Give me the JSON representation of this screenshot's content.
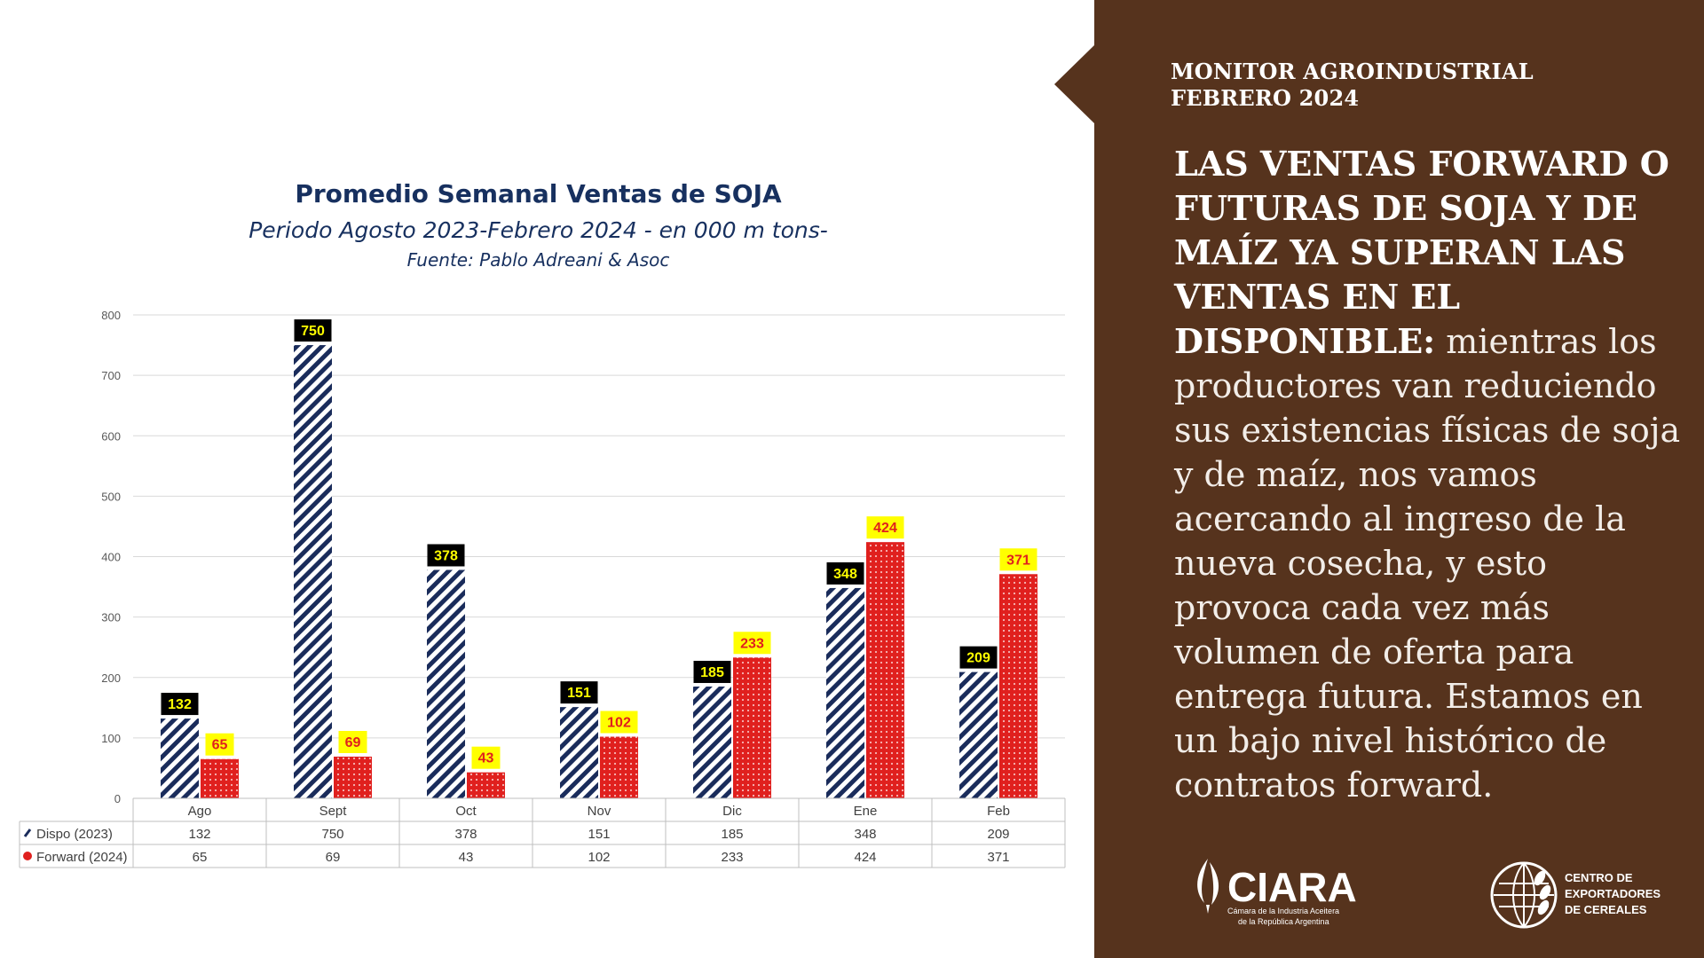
{
  "chart_data": {
    "type": "bar",
    "title": "Promedio Semanal Ventas de SOJA",
    "subtitle": "Periodo Agosto 2023-Febrero 2024 - en 000 m tons-",
    "source": "Fuente: Pablo Adreani & Asoc",
    "categories": [
      "Ago",
      "Sept",
      "Oct",
      "Nov",
      "Dic",
      "Ene",
      "Feb"
    ],
    "series": [
      {
        "name": "Dispo (2023)",
        "values": [
          132,
          750,
          378,
          151,
          185,
          348,
          209
        ],
        "color": "#1a2c5b"
      },
      {
        "name": "Forward (2024)",
        "values": [
          65,
          69,
          43,
          102,
          233,
          424,
          371
        ],
        "color": "#e0201e"
      }
    ],
    "ylim": [
      0,
      800
    ],
    "yticks": [
      0,
      100,
      200,
      300,
      400,
      500,
      600,
      700,
      800
    ],
    "grid": true,
    "legend": "data-table"
  },
  "panel": {
    "kicker": [
      "MONITOR AGROINDUSTRIAL",
      "FEBRERO 2024"
    ],
    "headline_bold": "LAS VENTAS FORWARD O FUTURAS DE SOJA Y DE MAÍZ YA SUPERAN LAS VENTAS EN EL DISPONIBLE:",
    "headline_body": " mientras los productores van reduciendo sus existencias físicas de soja y de maíz, nos vamos acercando al ingreso de la nueva cosecha, y esto provoca cada vez más volumen de oferta para entrega futura. Estamos en un bajo nivel histórico de contratos forward."
  },
  "logos": {
    "ciara_name": "CIARA",
    "ciara_sub1": "Cámara de la Industria Aceitera",
    "ciara_sub2": "de la República Argentina",
    "cec_line1": "CENTRO DE",
    "cec_line2": "EXPORTADORES",
    "cec_line3": "DE CEREALES"
  },
  "colors": {
    "panel_bg": "#56331d",
    "title": "#17305f",
    "label_dispo_bg": "#000000",
    "label_dispo_text": "#ffff00",
    "label_forward_bg": "#ffff00",
    "label_forward_text": "#e0201e"
  }
}
